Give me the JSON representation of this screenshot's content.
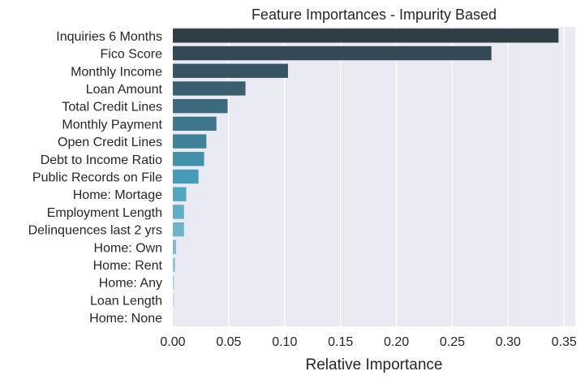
{
  "chart_data": {
    "type": "bar",
    "orientation": "horizontal",
    "title": "Feature Importances - Impurity Based",
    "xlabel": "Relative Importance",
    "ylabel": "",
    "xlim": [
      0,
      0.36
    ],
    "xticks": [
      "0.00",
      "0.05",
      "0.10",
      "0.15",
      "0.20",
      "0.25",
      "0.30",
      "0.35"
    ],
    "grid": true,
    "legend": "none",
    "categories": [
      "Inquiries 6 Months",
      "Fico Score",
      "Monthly Income",
      "Loan Amount",
      "Total Credit Lines",
      "Monthly Payment",
      "Open Credit Lines",
      "Debt to Income Ratio",
      "Public Records on File",
      "Home: Mortage",
      "Employment Length",
      "Delinquences last 2 yrs",
      "Home: Own",
      "Home: Rent",
      "Home: Any",
      "Loan Length",
      "Home: None"
    ],
    "values": [
      0.345,
      0.285,
      0.103,
      0.065,
      0.049,
      0.039,
      0.03,
      0.028,
      0.023,
      0.012,
      0.01,
      0.01,
      0.003,
      0.002,
      0.001,
      0.001,
      0.0005
    ],
    "colors": [
      "#2f3e46",
      "#334a56",
      "#365461",
      "#3a6070",
      "#3d6b7e",
      "#3f768c",
      "#41819a",
      "#4390aa",
      "#479bb8",
      "#52a6c0",
      "#5faec4",
      "#6bb5c6",
      "#7cbec9",
      "#8ec6cd",
      "#a2cfd4",
      "#b6d9db",
      "#cae2e3"
    ],
    "background": "#eaeaf2",
    "gridcolor": "#ffffff"
  }
}
